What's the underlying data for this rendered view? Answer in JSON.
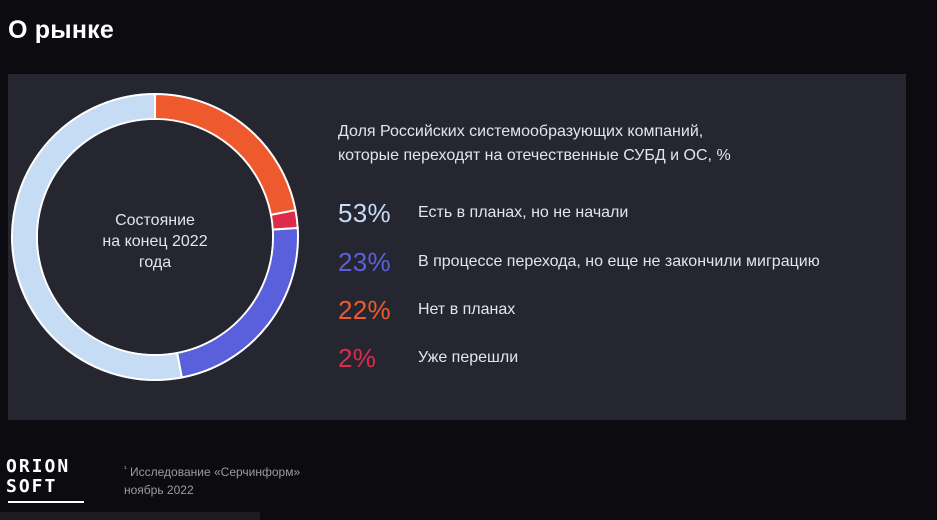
{
  "page": {
    "title": "О рынке"
  },
  "chart_data": {
    "type": "pie",
    "title": "Доля Российских системообразующих компаний, которые переходят на отечественные СУБД и ОС, %",
    "title_lines": [
      "Доля Российских системообразующих компаний,",
      "которые переходят на отечественные СУБД и ОС, %"
    ],
    "center_label_lines": [
      "Состояние",
      "на конец 2022",
      "года"
    ],
    "categories": [
      "Есть в планах, но не начали",
      "В процессе перехода, но еще не закончили миграцию",
      "Нет в планах",
      "Уже перешли"
    ],
    "values": [
      53,
      23,
      22,
      2
    ],
    "value_labels": [
      "53%",
      "23%",
      "22%",
      "2%"
    ],
    "colors": [
      "#c6dcf4",
      "#5a60dc",
      "#ee5a2e",
      "#e02a4c"
    ],
    "legend_placement": "right"
  },
  "footnote": {
    "marker": "¹",
    "line1": "Исследование «Серчинформ»",
    "line2": "ноябрь 2022"
  },
  "logo": {
    "line1": "ORION",
    "line2": "SOFT"
  }
}
